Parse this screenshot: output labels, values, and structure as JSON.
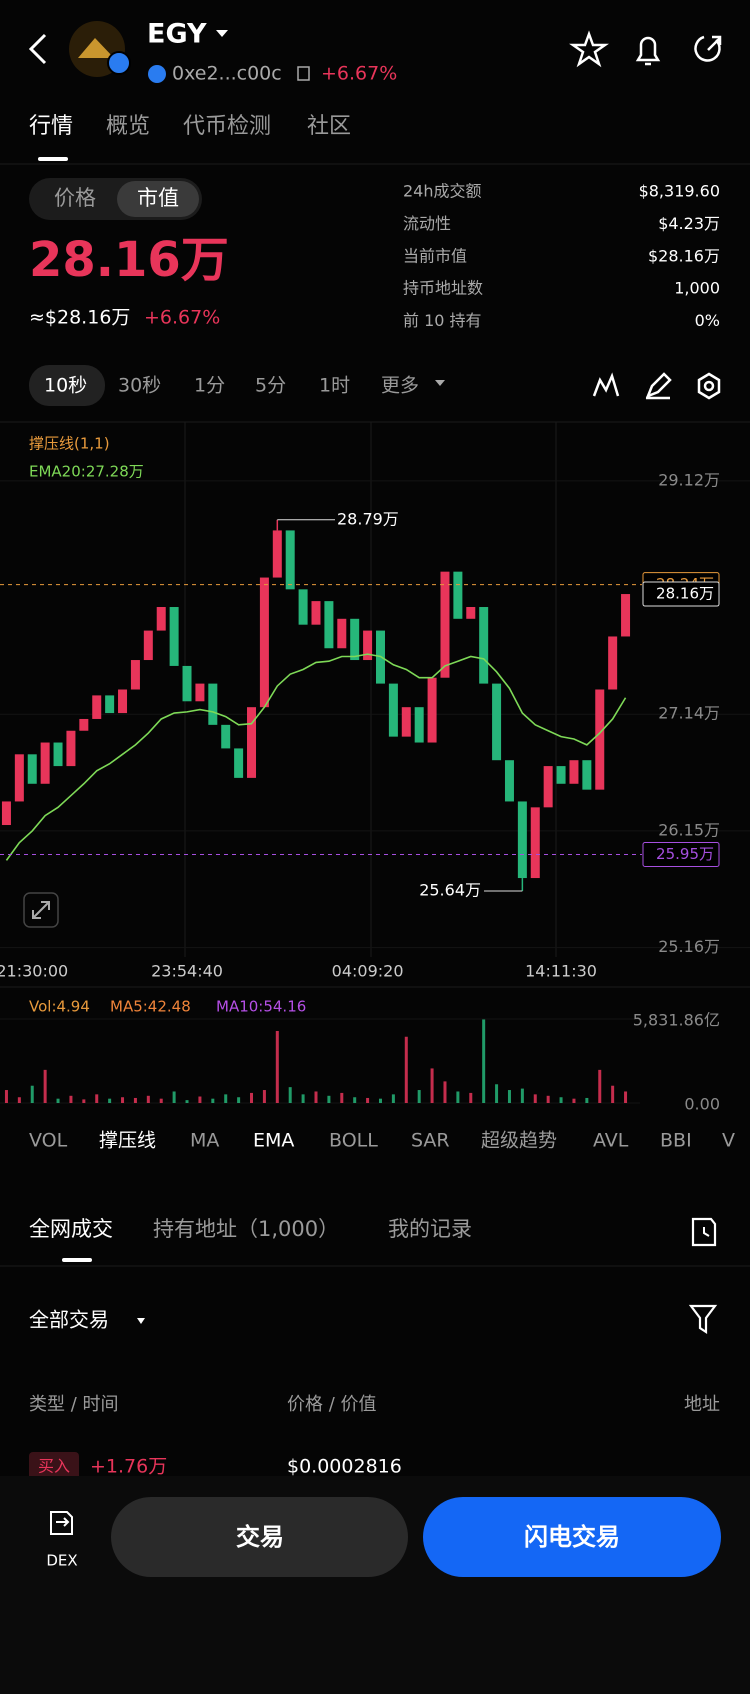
{
  "header": {
    "token": "EGY",
    "address": "0xe2...c00c",
    "change": "+6.67%"
  },
  "tabs": [
    "行情",
    "概览",
    "代币检测",
    "社区"
  ],
  "price_toggle": [
    "价格",
    "市值"
  ],
  "market_cap": "28.16万",
  "usd_value": "≈$28.16万",
  "usd_change": "+6.67%",
  "stats": [
    {
      "label": "24h成交额",
      "value": "$8,319.60"
    },
    {
      "label": "流动性",
      "value": "$4.23万"
    },
    {
      "label": "当前市值",
      "value": "$28.16万"
    },
    {
      "label": "持币地址数",
      "value": "1,000"
    },
    {
      "label": "前 10 持有",
      "value": "0%"
    }
  ],
  "intervals": [
    "10秒",
    "30秒",
    "1分",
    "5分",
    "1时",
    "更多"
  ],
  "chart": {
    "type": "candlestick",
    "indicator_label": "撑压线(1,1)",
    "ema_label": "EMA20:27.28万",
    "ylim": [
      25.08,
      29.62
    ],
    "yticks": [
      {
        "value": 29.12,
        "label": "29.12万"
      },
      {
        "value": 27.14,
        "label": "27.14万"
      },
      {
        "value": 26.15,
        "label": "26.15万"
      },
      {
        "value": 25.16,
        "label": "25.16万"
      }
    ],
    "categories": [
      null,
      null,
      "21:30:00",
      null,
      null,
      null,
      null,
      null,
      null,
      null,
      null,
      null,
      null,
      null,
      "23:54:40",
      null,
      null,
      null,
      null,
      null,
      null,
      null,
      null,
      null,
      null,
      null,
      null,
      null,
      "04:09:20",
      null,
      null,
      null,
      null,
      null,
      null,
      null,
      null,
      null,
      null,
      null,
      null,
      null,
      null,
      "14:11:30",
      null,
      null,
      null,
      null,
      null
    ],
    "opens": [
      26.2,
      26.4,
      26.8,
      26.55,
      26.9,
      26.7,
      27.0,
      27.1,
      27.3,
      27.15,
      27.35,
      27.6,
      27.85,
      28.05,
      27.55,
      27.25,
      27.4,
      27.05,
      26.85,
      26.6,
      27.2,
      28.3,
      28.7,
      28.2,
      27.9,
      28.1,
      27.7,
      27.95,
      27.6,
      27.85,
      27.4,
      26.95,
      27.2,
      26.9,
      27.45,
      28.35,
      27.95,
      28.05,
      27.4,
      26.75,
      26.4,
      25.75,
      26.35,
      26.7,
      26.55,
      26.75,
      26.5,
      27.35,
      27.8
    ],
    "closes": [
      26.4,
      26.8,
      26.55,
      26.9,
      26.7,
      27.0,
      27.1,
      27.3,
      27.15,
      27.35,
      27.6,
      27.85,
      28.05,
      27.55,
      27.25,
      27.4,
      27.05,
      26.85,
      26.6,
      27.2,
      28.3,
      28.7,
      28.2,
      27.9,
      28.1,
      27.7,
      27.95,
      27.6,
      27.85,
      27.4,
      26.95,
      27.2,
      26.9,
      27.45,
      28.35,
      27.95,
      28.05,
      27.4,
      26.75,
      26.4,
      25.75,
      26.35,
      26.7,
      26.55,
      26.75,
      26.5,
      27.35,
      27.8,
      28.16
    ],
    "ema": [
      25.9,
      26.05,
      26.15,
      26.28,
      26.35,
      26.45,
      26.55,
      26.66,
      26.72,
      26.8,
      26.88,
      26.98,
      27.1,
      27.15,
      27.16,
      27.18,
      27.16,
      27.12,
      27.05,
      27.06,
      27.2,
      27.38,
      27.48,
      27.52,
      27.58,
      27.59,
      27.63,
      27.63,
      27.65,
      27.63,
      27.56,
      27.52,
      27.45,
      27.45,
      27.55,
      27.59,
      27.63,
      27.61,
      27.5,
      27.36,
      27.15,
      27.05,
      27.0,
      26.95,
      26.93,
      26.88,
      26.98,
      27.1,
      27.28
    ],
    "ema_color": "#7ed957",
    "up_color": "#e8355a",
    "down_color": "#26b67a",
    "high": 28.79,
    "high_label": "28.79万",
    "low": 25.64,
    "low_label": "25.64万",
    "price_lines": [
      {
        "value": 28.24,
        "label": "28.24万",
        "color": "#e89a3c"
      },
      {
        "value": 25.95,
        "label": "25.95万",
        "color": "#a64fe0"
      }
    ],
    "current": {
      "value": 28.16,
      "label": "28.16万"
    },
    "volume": {
      "labels": [
        {
          "text": "Vol:4.94",
          "color": "#e89a3c"
        },
        {
          "text": "MA5:42.48",
          "color": "#f0843a"
        },
        {
          "text": "MA10:54.16",
          "color": "#b54fe6"
        }
      ],
      "ylim": [
        0,
        5831.86
      ],
      "yticks": [
        {
          "value": 5831.86,
          "label": "5,831.86亿"
        },
        {
          "value": 0,
          "label": "0.00"
        }
      ],
      "values": [
        900,
        400,
        1200,
        2300,
        300,
        500,
        250,
        600,
        300,
        400,
        350,
        500,
        300,
        800,
        200,
        450,
        300,
        600,
        400,
        700,
        900,
        5000,
        1100,
        600,
        800,
        500,
        700,
        400,
        350,
        300,
        600,
        4600,
        900,
        2400,
        1500,
        800,
        700,
        5800,
        1300,
        900,
        1000,
        600,
        500,
        400,
        300,
        350,
        2300,
        1200,
        800
      ]
    }
  },
  "indicators": [
    "VOL",
    "撑压线",
    "MA",
    "EMA",
    "BOLL",
    "SAR",
    "超级趋势",
    "AVL",
    "BBI",
    "V"
  ],
  "trade_tabs": [
    "全网成交",
    "持有地址（1,000）",
    "我的记录"
  ],
  "filter": "全部交易",
  "table": {
    "columns": [
      "类型 / 时间",
      "价格 / 价值",
      "地址"
    ],
    "rows": [
      [
        "买入",
        "+1.76万",
        "$0.0002816"
      ]
    ]
  },
  "bottom": {
    "dex": "DEX",
    "trade": "交易",
    "flash": "闪电交易"
  }
}
